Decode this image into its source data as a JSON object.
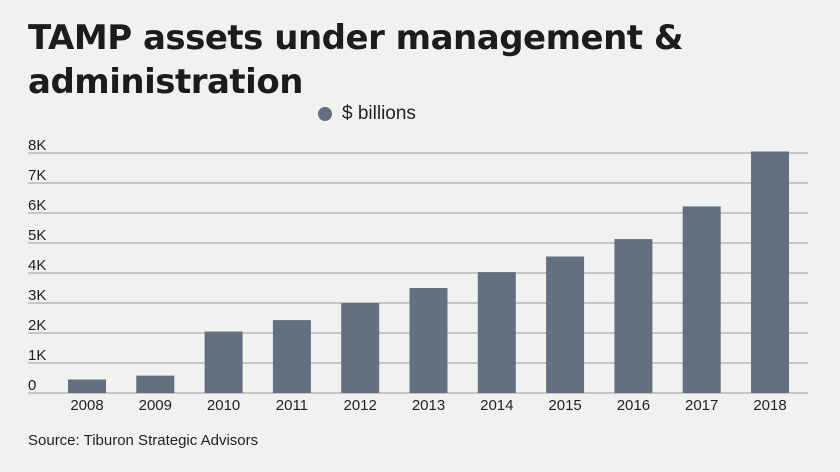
{
  "title": "TAMP assets under management & administration",
  "source": "Source: Tiburon Strategic Advisors",
  "colors": {
    "bar": "#637082",
    "grid": "#9a9a9a",
    "background": "#f1f2f0"
  },
  "chart_data": {
    "type": "bar",
    "title": "TAMP assets under management & administration",
    "legend": "top",
    "grid": true,
    "xlabel": "",
    "ylabel": "",
    "ylim": [
      0,
      8000
    ],
    "yticks": [
      {
        "value": 0,
        "label": "0"
      },
      {
        "value": 1000,
        "label": "1K"
      },
      {
        "value": 2000,
        "label": "2K"
      },
      {
        "value": 3000,
        "label": "3K"
      },
      {
        "value": 4000,
        "label": "4K"
      },
      {
        "value": 5000,
        "label": "5K"
      },
      {
        "value": 6000,
        "label": "6K"
      },
      {
        "value": 7000,
        "label": "7K"
      },
      {
        "value": 8000,
        "label": "8K"
      }
    ],
    "categories": [
      "2008",
      "2009",
      "2010",
      "2011",
      "2012",
      "2013",
      "2014",
      "2015",
      "2016",
      "2017",
      "2018"
    ],
    "series": [
      {
        "name": "$ billions",
        "values": [
          450,
          580,
          2050,
          2430,
          3000,
          3500,
          4030,
          4550,
          5130,
          6220,
          8050
        ]
      }
    ]
  }
}
